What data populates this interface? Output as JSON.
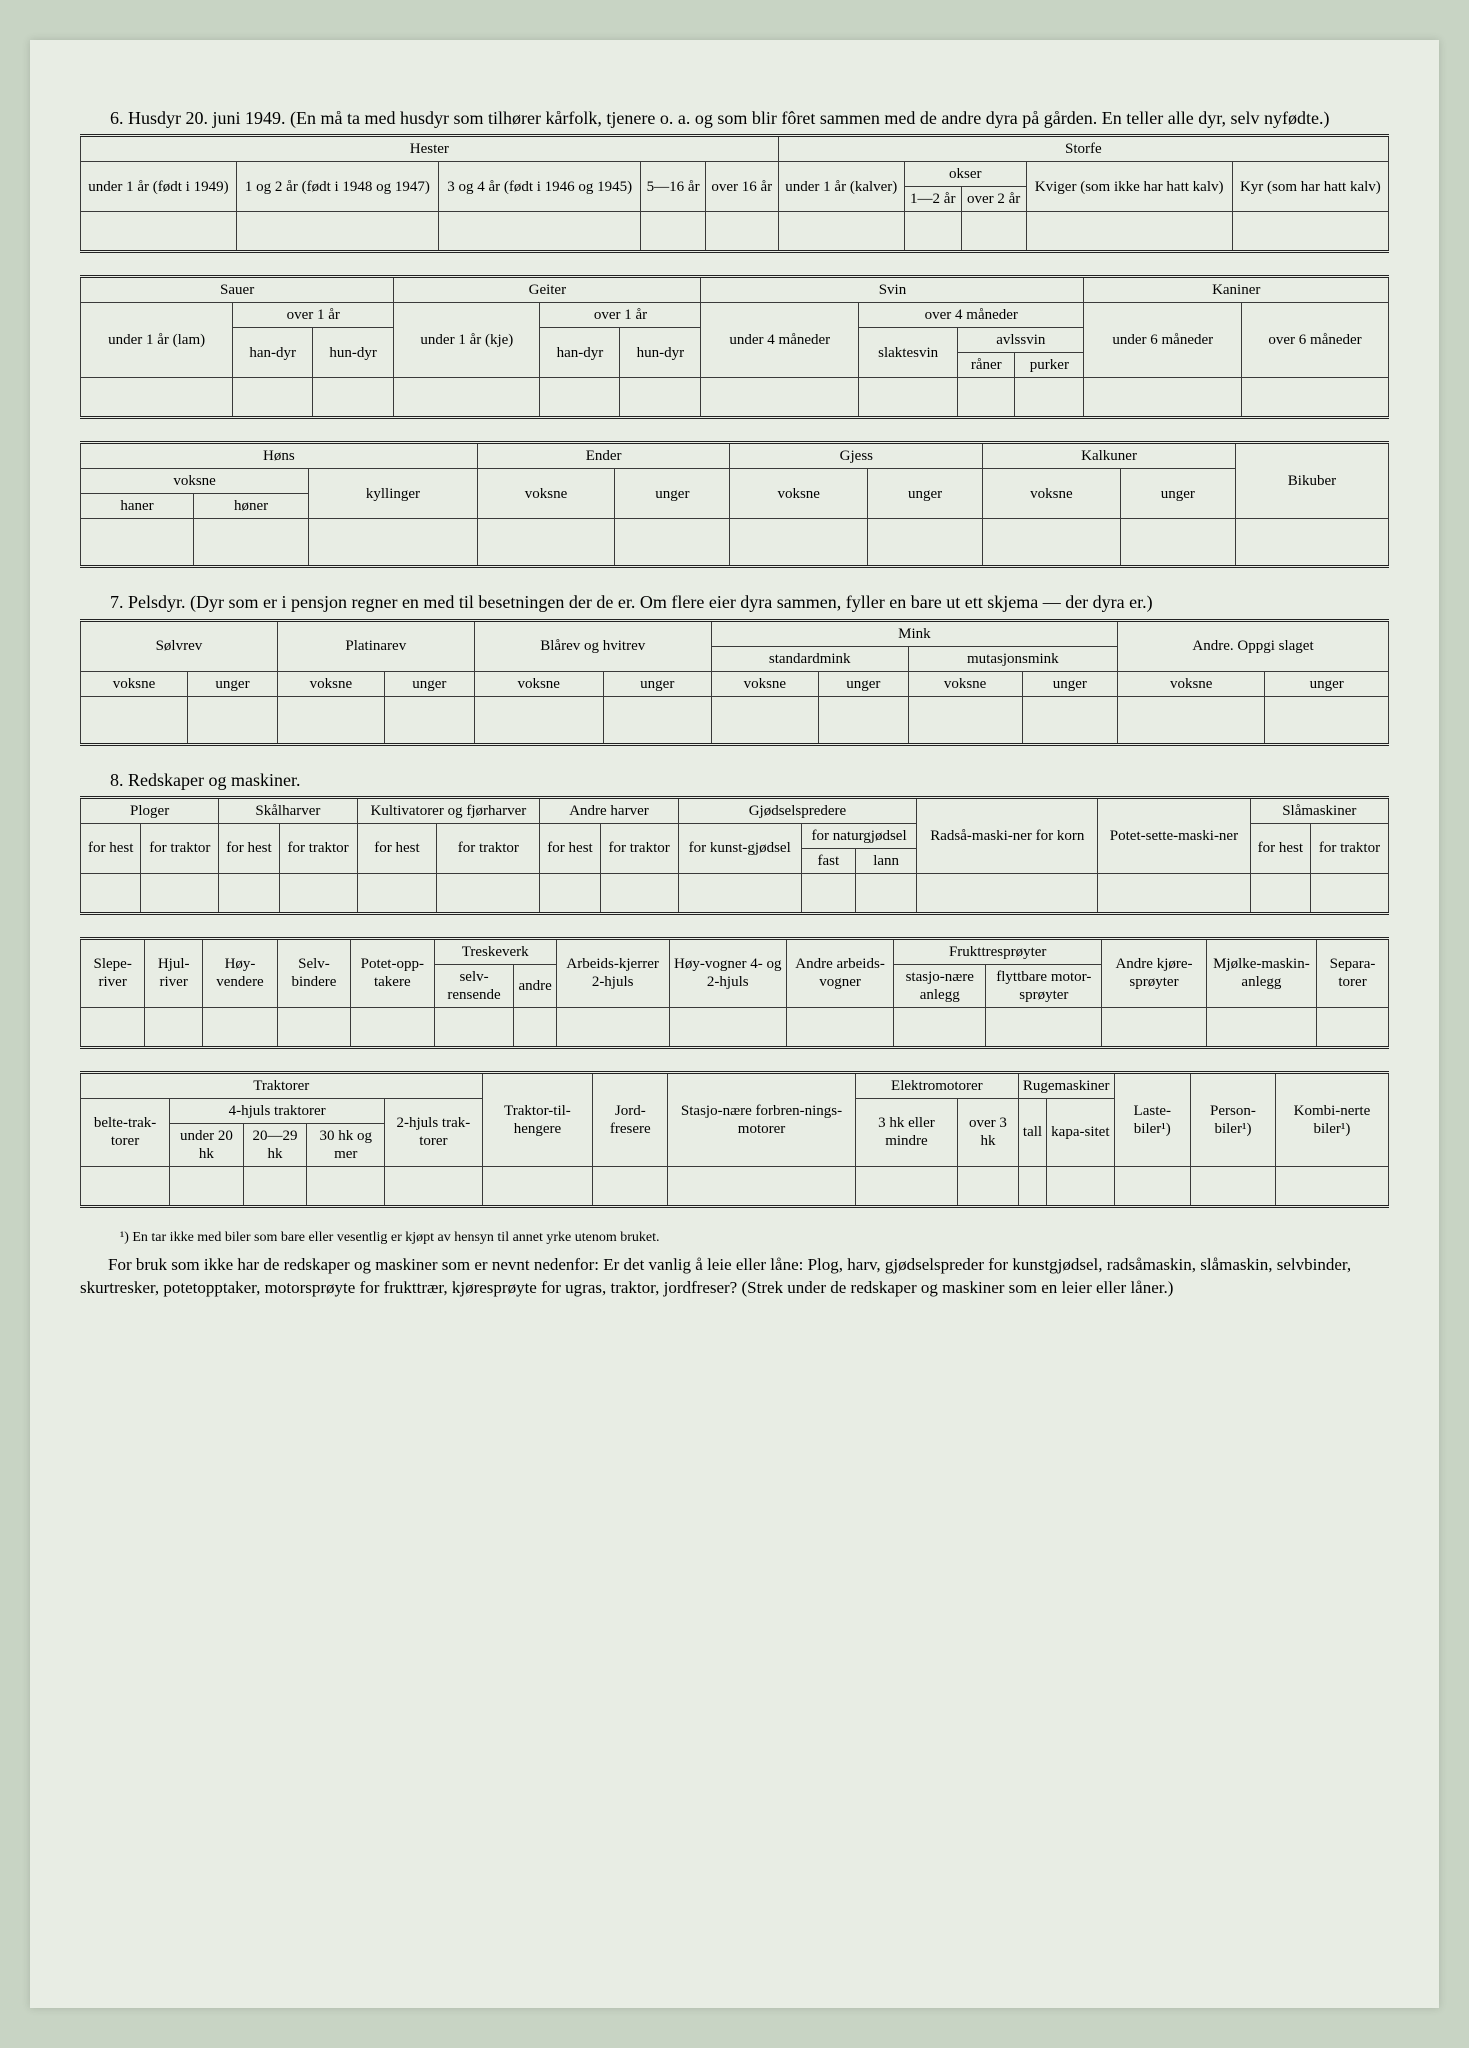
{
  "section6": {
    "title": "6. Husdyr 20. juni 1949. (En må ta med husdyr som tilhører kårfolk, tjenere o. a. og som blir fôret sammen med de andre dyra på gården. En teller alle dyr, selv nyfødte.)",
    "hester_label": "Hester",
    "storfe_label": "Storfe",
    "h1": "under 1 år (født i 1949)",
    "h2": "1 og 2 år (født i 1948 og 1947)",
    "h3": "3 og 4 år (født i 1946 og 1945)",
    "h4": "5—16 år",
    "h5": "over 16 år",
    "s1": "under 1 år (kalver)",
    "okser": "okser",
    "s2": "1—2 år",
    "s3": "over 2 år",
    "s4": "Kviger (som ikke har hatt kalv)",
    "s5": "Kyr (som har hatt kalv)",
    "sauer": "Sauer",
    "geiter": "Geiter",
    "svin": "Svin",
    "kaniner": "Kaniner",
    "under1lam": "under 1 år (lam)",
    "over1": "over 1 år",
    "handyr": "han-dyr",
    "hundyr": "hun-dyr",
    "under1kje": "under 1 år (kje)",
    "under4m": "under 4 måneder",
    "over4m": "over 4 måneder",
    "slaktesvin": "slaktesvin",
    "avlssvin": "avlssvin",
    "raner": "råner",
    "purker": "purker",
    "under6m": "under 6 måneder",
    "over6m": "over 6 måneder",
    "hons": "Høns",
    "ender": "Ender",
    "gjess": "Gjess",
    "kalkuner": "Kalkuner",
    "bikuber": "Bikuber",
    "voksne": "voksne",
    "kyllinger": "kyllinger",
    "unger": "unger",
    "haner": "haner",
    "honer": "høner"
  },
  "section7": {
    "title": "7. Pelsdyr. (Dyr som er i pensjon regner en med til besetningen der de er. Om flere eier dyra sammen, fyller en bare ut ett skjema — der dyra er.)",
    "solvrev": "Sølvrev",
    "platinarev": "Platinarev",
    "blarev": "Blårev og hvitrev",
    "mink": "Mink",
    "standardmink": "standardmink",
    "mutasjonsmink": "mutasjonsmink",
    "andre": "Andre. Oppgi slaget",
    "voksne": "voksne",
    "unger": "unger"
  },
  "section8": {
    "title": "8. Redskaper og maskiner.",
    "ploger": "Ploger",
    "skalharver": "Skålharver",
    "kultivatorer": "Kultivatorer og fjørharver",
    "andreharver": "Andre harver",
    "gjodsel": "Gjødselspredere",
    "radsa": "Radså-maski-ner for korn",
    "potet": "Potet-sette-maski-ner",
    "slamaskiner": "Slåmaskiner",
    "forhest": "for hest",
    "fortraktor": "for traktor",
    "kunstgjodsel": "for kunst-gjødsel",
    "naturgjodsel": "for naturgjødsel",
    "fast": "fast",
    "lann": "lann",
    "sleperiver": "Slepe-river",
    "hjulriver": "Hjul-river",
    "hoyvendere": "Høy-vendere",
    "selvbindere": "Selv-bindere",
    "potetopp": "Potet-opp-takere",
    "treskeverk": "Treskeverk",
    "selvrensende": "selv-rensende",
    "andre": "andre",
    "arbeidskjerrer": "Arbeids-kjerrer 2-hjuls",
    "hoyvogner": "Høy-vogner 4- og 2-hjuls",
    "andrevogner": "Andre arbeids-vogner",
    "frukttre": "Frukttresprøyter",
    "stasjonanl": "stasjo-nære anlegg",
    "flyttbare": "flyttbare motor-sprøyter",
    "andrekjore": "Andre kjøre-sprøyter",
    "mjolke": "Mjølke-maskin-anlegg",
    "separa": "Separa-torer",
    "traktorer": "Traktorer",
    "belte": "belte-trak-torer",
    "fhjuls": "4-hjuls traktorer",
    "under20": "under 20 hk",
    "hk2029": "20—29 hk",
    "hk30": "30 hk og mer",
    "tohjuls": "2-hjuls trak-torer",
    "traktortil": "Traktor-til-hengere",
    "jordfresere": "Jord-fresere",
    "stasjomotor": "Stasjo-nære forbren-nings-motorer",
    "elektro": "Elektromotorer",
    "hk3mindre": "3 hk eller mindre",
    "over3hk": "over 3 hk",
    "ruge": "Rugemaskiner",
    "tall": "tall",
    "kapasitet": "kapa-sitet",
    "lastebiler": "Laste-biler¹)",
    "personbiler": "Person-biler¹)",
    "kombibiler": "Kombi-nerte biler¹)"
  },
  "footnote": "¹) En tar ikke med biler som bare eller vesentlig er kjøpt av hensyn til annet yrke utenom bruket.",
  "footer": "For bruk som ikke har de redskaper og maskiner som er nevnt nedenfor: Er det vanlig å leie eller låne: Plog, harv, gjødselspreder for kunstgjødsel, radsåmaskin, slåmaskin, selvbinder, skurtresker, potetopptaker, motorsprøyte for frukttrær, kjøresprøyte for ugras, traktor, jordfreser? (Strek under de redskaper og maskiner som en leier eller låner.)"
}
